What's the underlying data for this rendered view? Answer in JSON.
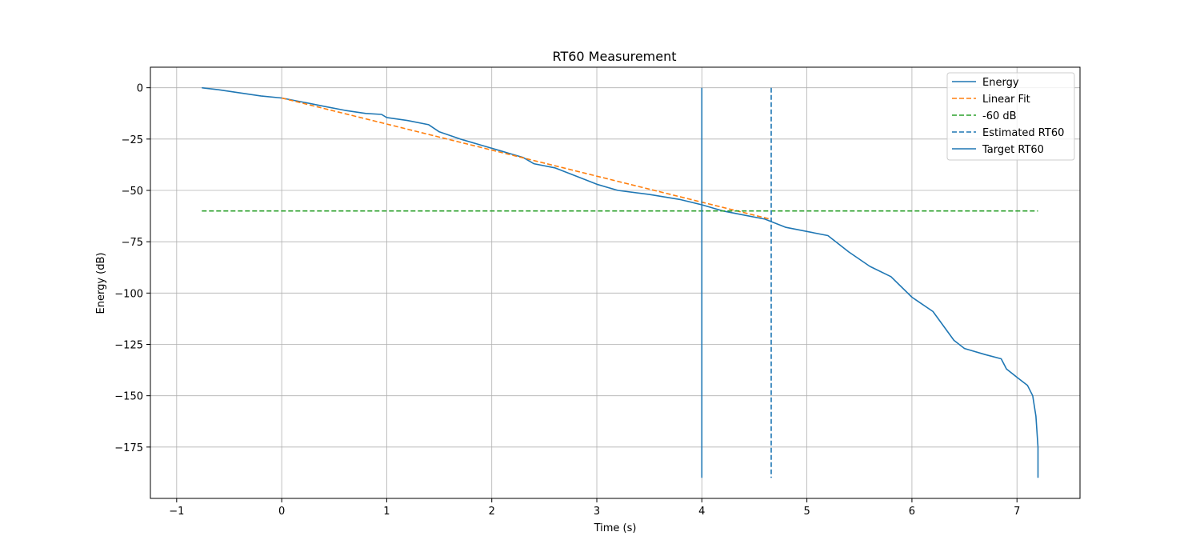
{
  "chart_data": {
    "type": "line",
    "title": "RT60 Measurement",
    "xlabel": "Time (s)",
    "ylabel": "Energy (dB)",
    "xlim": [
      -1.25,
      7.6
    ],
    "ylim": [
      -200,
      10
    ],
    "xticks": [
      -1,
      0,
      1,
      2,
      3,
      4,
      5,
      6,
      7
    ],
    "yticks": [
      0,
      -25,
      -50,
      -75,
      -100,
      -125,
      -150,
      -175
    ],
    "xtick_labels": [
      "−1",
      "0",
      "1",
      "2",
      "3",
      "4",
      "5",
      "6",
      "7"
    ],
    "ytick_labels": [
      "0",
      "−25",
      "−50",
      "−75",
      "−100",
      "−125",
      "−150",
      "−175"
    ],
    "grid": true,
    "legend_position": "top-right",
    "series": [
      {
        "name": "Energy",
        "style": "solid",
        "color": "#1f77b4",
        "x": [
          -0.76,
          -0.6,
          -0.4,
          -0.2,
          0.0,
          0.2,
          0.4,
          0.6,
          0.8,
          0.95,
          1.0,
          1.2,
          1.4,
          1.5,
          1.7,
          1.9,
          2.1,
          2.3,
          2.4,
          2.6,
          2.8,
          3.0,
          3.2,
          3.5,
          3.8,
          4.0,
          4.2,
          4.4,
          4.6,
          4.8,
          5.0,
          5.2,
          5.4,
          5.6,
          5.8,
          6.0,
          6.2,
          6.4,
          6.5,
          6.7,
          6.85,
          6.9,
          7.0,
          7.1,
          7.15,
          7.18,
          7.2,
          7.2
        ],
        "y": [
          0,
          -1,
          -2.5,
          -4,
          -5,
          -7,
          -9,
          -11,
          -12.5,
          -13,
          -14.5,
          -16,
          -18,
          -21.5,
          -25,
          -28,
          -31,
          -34,
          -37,
          -39,
          -43,
          -47,
          -50,
          -52,
          -54.5,
          -57,
          -60,
          -62,
          -64,
          -68,
          -70,
          -72,
          -80,
          -87,
          -92,
          -102,
          -109,
          -123,
          -127,
          -130,
          -132,
          -137,
          -141,
          -145,
          -150,
          -160,
          -175,
          -190
        ]
      },
      {
        "name": "Linear Fit",
        "style": "dashed",
        "color": "#ff7f0e",
        "x": [
          0.0,
          4.65
        ],
        "y": [
          -5,
          -64
        ]
      },
      {
        "name": "-60 dB",
        "style": "dashed",
        "color": "#2ca02c",
        "x": [
          -0.76,
          7.2
        ],
        "y": [
          -60,
          -60
        ]
      },
      {
        "name": "Estimated RT60",
        "style": "dashed",
        "color": "#1f77b4",
        "x": [
          4.66,
          4.66
        ],
        "y": [
          0,
          -190
        ]
      },
      {
        "name": "Target RT60",
        "style": "solid",
        "color": "#1f77b4",
        "x": [
          4.0,
          4.0
        ],
        "y": [
          0,
          -190
        ]
      }
    ]
  }
}
